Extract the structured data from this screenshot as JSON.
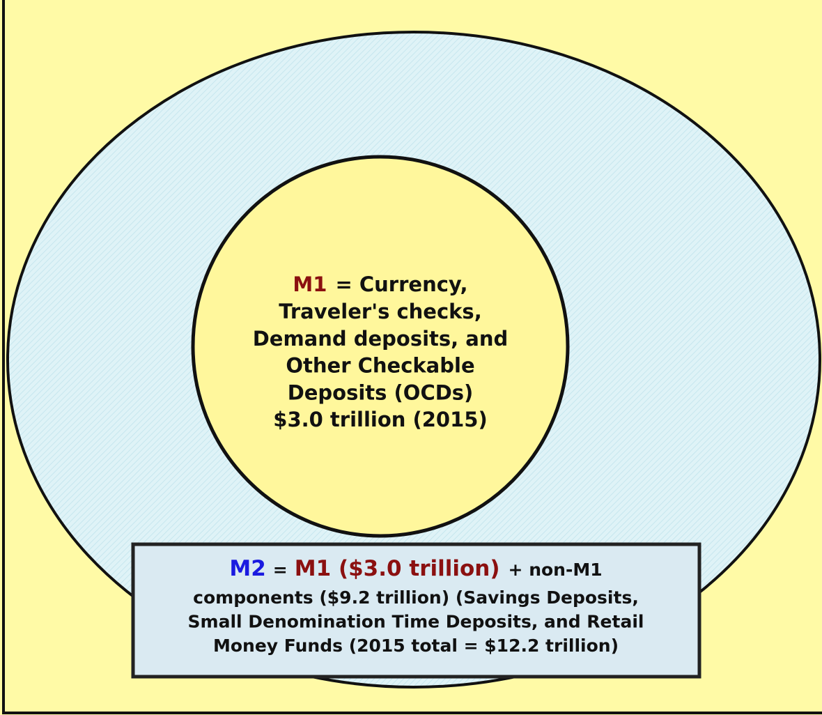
{
  "m1_circle": {
    "label": "M1",
    "label_rest": "= Currency,",
    "lines": [
      "Traveler's checks,",
      "Demand deposits, and",
      "Other Checkable",
      "Deposits (OCDs)",
      "$3.0 trillion (2015)"
    ]
  },
  "m2_box": {
    "label": "M2",
    "equals": "=",
    "m1_part": "M1 ($3.0 trillion)",
    "first_line_rest": "+ non-M1",
    "lines": [
      "components ($9.2 trillion) (Savings Deposits,",
      "Small Denomination Time Deposits, and Retail",
      "Money Funds (2015 total = $12.2 trillion)"
    ]
  }
}
